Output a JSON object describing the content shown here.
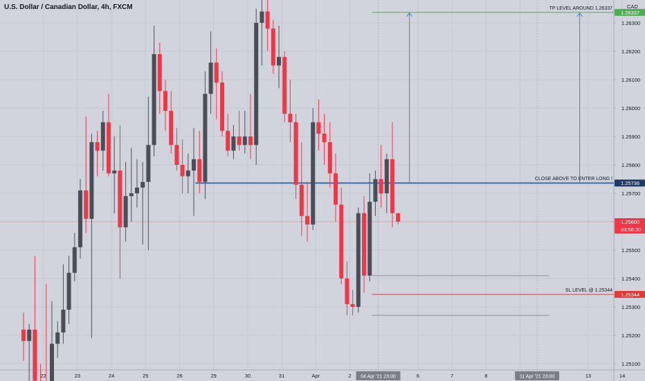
{
  "header": {
    "title": "U.S. Dollar / Canadian Dollar, 4h, FXCM"
  },
  "colors": {
    "background": "#d1d4dc",
    "up": "#4a4e59",
    "down": "#f23645",
    "axis_text": "#131722",
    "grid": "#c5c8d0",
    "tp": "#4caf50",
    "entry": "#3c6fb0",
    "sl": "#e53935",
    "current": "#f23645",
    "arrow": "#4a7fb5",
    "gray_line": "#8a8e99"
  },
  "chart_data": {
    "type": "candlestick",
    "symbol": "U.S. Dollar / Canadian Dollar",
    "timeframe": "4h",
    "source": "FXCM",
    "currency": "CAD",
    "ylim": [
      1.2505,
      1.2655
    ],
    "y_ticks": [
      1.251,
      1.252,
      1.253,
      1.254,
      1.255,
      1.257,
      1.258,
      1.259,
      1.26,
      1.261,
      1.262,
      1.263,
      1.264,
      1.265
    ],
    "x_labels": [
      {
        "label": "22",
        "bar": 3.5
      },
      {
        "label": "23",
        "bar": 9.5
      },
      {
        "label": "24",
        "bar": 15.5
      },
      {
        "label": "25",
        "bar": 21.5
      },
      {
        "label": "26",
        "bar": 27.5
      },
      {
        "label": "29",
        "bar": 33.5
      },
      {
        "label": "30",
        "bar": 39.5
      },
      {
        "label": "31",
        "bar": 45.5
      },
      {
        "label": "Apr",
        "bar": 51.5
      },
      {
        "label": "2",
        "bar": 57.5
      },
      {
        "label": "6",
        "bar": 69.5
      },
      {
        "label": "7",
        "bar": 75.5
      },
      {
        "label": "8",
        "bar": 81.5
      },
      {
        "label": "9",
        "bar": 87.5
      },
      {
        "label": "13",
        "bar": 99.5
      },
      {
        "label": "14",
        "bar": 105.5
      }
    ],
    "x_highlights": [
      {
        "label": "04 Apr '21  23:00",
        "bar": 62.5
      },
      {
        "label": "11 Apr '21  23:00",
        "bar": 90.5
      }
    ],
    "candles": [
      {
        "o": 1.2522,
        "h": 1.2528,
        "l": 1.2511,
        "c": 1.2518
      },
      {
        "o": 1.2518,
        "h": 1.2524,
        "l": 1.2495,
        "c": 1.2522
      },
      {
        "o": 1.2522,
        "h": 1.2548,
        "l": 1.25,
        "c": 1.2504
      },
      {
        "o": 1.2504,
        "h": 1.251,
        "l": 1.2495,
        "c": 1.25
      },
      {
        "o": 1.25,
        "h": 1.2538,
        "l": 1.2495,
        "c": 1.2498
      },
      {
        "o": 1.2498,
        "h": 1.2532,
        "l": 1.2496,
        "c": 1.2517
      },
      {
        "o": 1.2517,
        "h": 1.2525,
        "l": 1.2512,
        "c": 1.2521
      },
      {
        "o": 1.2521,
        "h": 1.2545,
        "l": 1.2517,
        "c": 1.2529
      },
      {
        "o": 1.2529,
        "h": 1.2548,
        "l": 1.2524,
        "c": 1.2542
      },
      {
        "o": 1.2542,
        "h": 1.2556,
        "l": 1.2539,
        "c": 1.2551
      },
      {
        "o": 1.2551,
        "h": 1.2575,
        "l": 1.2547,
        "c": 1.2571
      },
      {
        "o": 1.2571,
        "h": 1.2597,
        "l": 1.2556,
        "c": 1.2561
      },
      {
        "o": 1.2561,
        "h": 1.2591,
        "l": 1.2519,
        "c": 1.2588
      },
      {
        "o": 1.2588,
        "h": 1.2592,
        "l": 1.2576,
        "c": 1.2585
      },
      {
        "o": 1.2585,
        "h": 1.2599,
        "l": 1.2578,
        "c": 1.2595
      },
      {
        "o": 1.2595,
        "h": 1.2605,
        "l": 1.2576,
        "c": 1.2577
      },
      {
        "o": 1.2577,
        "h": 1.259,
        "l": 1.2563,
        "c": 1.2578
      },
      {
        "o": 1.2578,
        "h": 1.2594,
        "l": 1.254,
        "c": 1.2558
      },
      {
        "o": 1.2558,
        "h": 1.2581,
        "l": 1.2553,
        "c": 1.2569
      },
      {
        "o": 1.2569,
        "h": 1.2586,
        "l": 1.256,
        "c": 1.257
      },
      {
        "o": 1.257,
        "h": 1.2582,
        "l": 1.2565,
        "c": 1.2572
      },
      {
        "o": 1.2572,
        "h": 1.2581,
        "l": 1.2552,
        "c": 1.2574
      },
      {
        "o": 1.2574,
        "h": 1.2604,
        "l": 1.255,
        "c": 1.2587
      },
      {
        "o": 1.2587,
        "h": 1.2629,
        "l": 1.2583,
        "c": 1.2619
      },
      {
        "o": 1.2619,
        "h": 1.2623,
        "l": 1.2598,
        "c": 1.2606
      },
      {
        "o": 1.2606,
        "h": 1.261,
        "l": 1.2592,
        "c": 1.2599
      },
      {
        "o": 1.2599,
        "h": 1.2606,
        "l": 1.2584,
        "c": 1.2587
      },
      {
        "o": 1.2587,
        "h": 1.2593,
        "l": 1.2578,
        "c": 1.258
      },
      {
        "o": 1.258,
        "h": 1.2589,
        "l": 1.257,
        "c": 1.2576
      },
      {
        "o": 1.2576,
        "h": 1.2584,
        "l": 1.257,
        "c": 1.2578
      },
      {
        "o": 1.2578,
        "h": 1.2593,
        "l": 1.2562,
        "c": 1.2582
      },
      {
        "o": 1.2582,
        "h": 1.2592,
        "l": 1.257,
        "c": 1.2574
      },
      {
        "o": 1.2574,
        "h": 1.2613,
        "l": 1.2568,
        "c": 1.2605
      },
      {
        "o": 1.2605,
        "h": 1.2627,
        "l": 1.2598,
        "c": 1.2616
      },
      {
        "o": 1.2616,
        "h": 1.2621,
        "l": 1.2596,
        "c": 1.2609
      },
      {
        "o": 1.2609,
        "h": 1.2613,
        "l": 1.259,
        "c": 1.2592
      },
      {
        "o": 1.2592,
        "h": 1.2598,
        "l": 1.2583,
        "c": 1.2585
      },
      {
        "o": 1.2585,
        "h": 1.2594,
        "l": 1.2582,
        "c": 1.259
      },
      {
        "o": 1.259,
        "h": 1.2599,
        "l": 1.2585,
        "c": 1.2587
      },
      {
        "o": 1.2587,
        "h": 1.2599,
        "l": 1.2584,
        "c": 1.259
      },
      {
        "o": 1.259,
        "h": 1.2605,
        "l": 1.2582,
        "c": 1.2587
      },
      {
        "o": 1.2587,
        "h": 1.2635,
        "l": 1.258,
        "c": 1.263
      },
      {
        "o": 1.263,
        "h": 1.2647,
        "l": 1.2615,
        "c": 1.2634
      },
      {
        "o": 1.2634,
        "h": 1.2642,
        "l": 1.262,
        "c": 1.2628
      },
      {
        "o": 1.2628,
        "h": 1.2631,
        "l": 1.2612,
        "c": 1.2615
      },
      {
        "o": 1.2615,
        "h": 1.2629,
        "l": 1.2607,
        "c": 1.2618
      },
      {
        "o": 1.2618,
        "h": 1.262,
        "l": 1.2595,
        "c": 1.2598
      },
      {
        "o": 1.2598,
        "h": 1.261,
        "l": 1.2588,
        "c": 1.2595
      },
      {
        "o": 1.2595,
        "h": 1.2598,
        "l": 1.2568,
        "c": 1.2573
      },
      {
        "o": 1.2573,
        "h": 1.2588,
        "l": 1.2555,
        "c": 1.2562
      },
      {
        "o": 1.2562,
        "h": 1.2574,
        "l": 1.2553,
        "c": 1.2559
      },
      {
        "o": 1.2559,
        "h": 1.26,
        "l": 1.2557,
        "c": 1.2595
      },
      {
        "o": 1.2595,
        "h": 1.2603,
        "l": 1.2585,
        "c": 1.2591
      },
      {
        "o": 1.2591,
        "h": 1.2598,
        "l": 1.258,
        "c": 1.2588
      },
      {
        "o": 1.2588,
        "h": 1.2595,
        "l": 1.2572,
        "c": 1.2577
      },
      {
        "o": 1.2577,
        "h": 1.2584,
        "l": 1.256,
        "c": 1.2566
      },
      {
        "o": 1.2566,
        "h": 1.2572,
        "l": 1.2538,
        "c": 1.254
      },
      {
        "o": 1.254,
        "h": 1.2546,
        "l": 1.2527,
        "c": 1.2531
      },
      {
        "o": 1.2531,
        "h": 1.2536,
        "l": 1.2527,
        "c": 1.253
      },
      {
        "o": 1.253,
        "h": 1.2565,
        "l": 1.2528,
        "c": 1.2563
      },
      {
        "o": 1.2563,
        "h": 1.2569,
        "l": 1.2535,
        "c": 1.2541
      },
      {
        "o": 1.2541,
        "h": 1.2577,
        "l": 1.2539,
        "c": 1.2567
      },
      {
        "o": 1.2567,
        "h": 1.2578,
        "l": 1.2562,
        "c": 1.2575
      },
      {
        "o": 1.2575,
        "h": 1.2587,
        "l": 1.2565,
        "c": 1.257
      },
      {
        "o": 1.257,
        "h": 1.2584,
        "l": 1.2563,
        "c": 1.2582
      },
      {
        "o": 1.2582,
        "h": 1.2595,
        "l": 1.2558,
        "c": 1.2563
      },
      {
        "o": 1.2563,
        "h": 1.2563,
        "l": 1.2559,
        "c": 1.256
      }
    ],
    "levels": [
      {
        "name": "tp",
        "price": 1.26337,
        "label": "TP LEVEL AROUND 1.26337",
        "badge": "1.26337"
      },
      {
        "name": "entry",
        "price": 1.25736,
        "label": "CLOSE ABOVE TO ENTER LONG !",
        "badge": "1.25736"
      },
      {
        "name": "sl",
        "price": 1.25344,
        "label": "SL LEVEL @ 1.25344",
        "badge": "1.25344"
      }
    ],
    "current_price": {
      "price": 1.256,
      "label": "1.25600",
      "countdown": "03:56:20"
    },
    "gray_levels": [
      1.2541,
      1.2527
    ],
    "arrows": [
      {
        "bar": 68,
        "from": 1.25736,
        "to": 1.26337
      },
      {
        "bar": 98,
        "from": 1.25736,
        "to": 1.26337
      }
    ]
  }
}
